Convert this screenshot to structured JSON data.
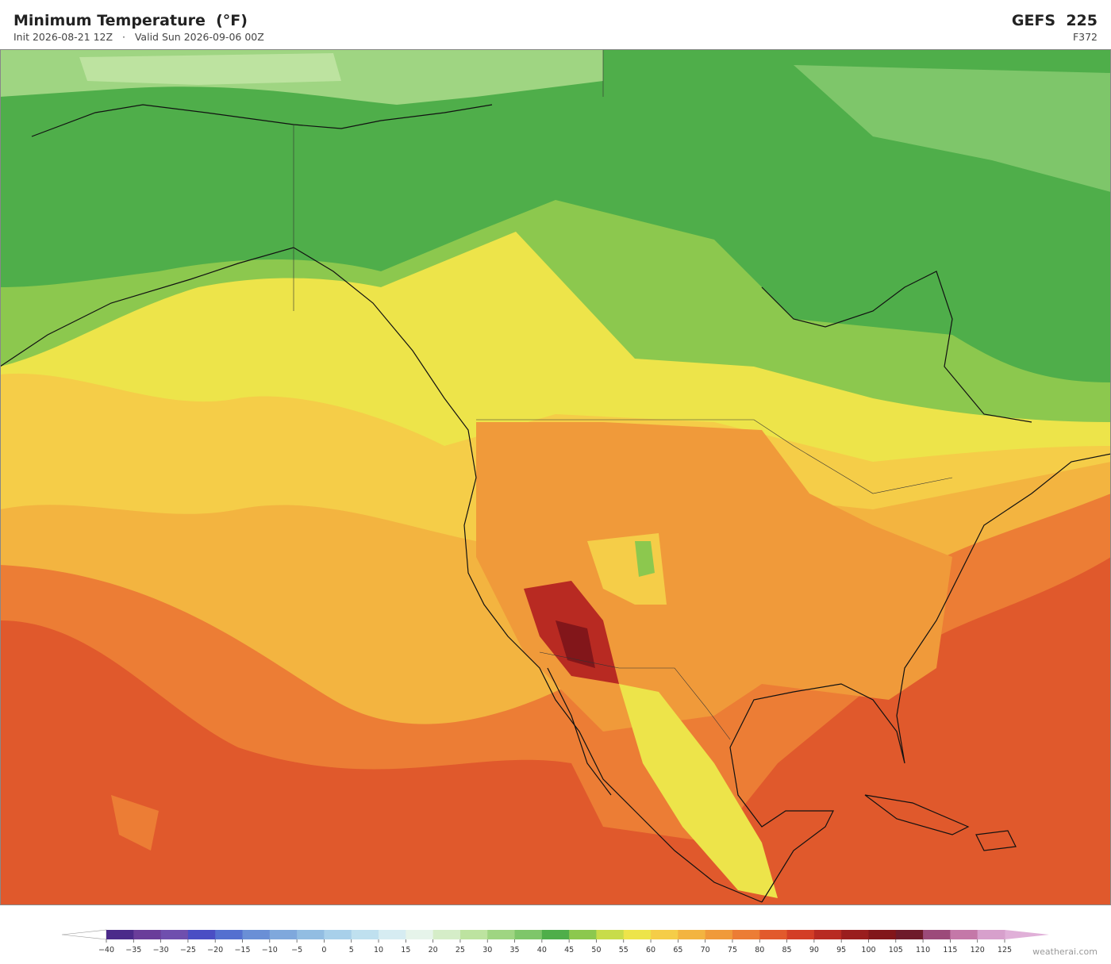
{
  "header": {
    "title": "Minimum Temperature  (°F)",
    "subtitle": "Init 2026-08-21 12Z   ·   Valid Sun 2026-09-06 00Z",
    "model": "GEFS  225",
    "forecast_hour": "F372"
  },
  "colorbar": {
    "ticks": [
      {
        "value": -40,
        "label": "−40"
      },
      {
        "value": -35,
        "label": "−35"
      },
      {
        "value": -30,
        "label": "−30"
      },
      {
        "value": -25,
        "label": "−25"
      },
      {
        "value": -20,
        "label": "−20"
      },
      {
        "value": -15,
        "label": "−15"
      },
      {
        "value": -10,
        "label": "−10"
      },
      {
        "value": -5,
        "label": "−5"
      },
      0,
      5,
      10,
      15,
      20,
      25,
      30,
      35,
      40,
      45,
      50,
      55,
      60,
      65,
      70,
      75,
      80,
      85,
      90,
      95,
      100,
      105,
      110,
      115,
      120,
      125
    ],
    "colors": [
      "#4b2a8a",
      "#6a3d9a",
      "#6f4fae",
      "#4a4ec4",
      "#5470d0",
      "#6a8fd6",
      "#7fa8dc",
      "#92bde2",
      "#a8d0ea",
      "#bfe0ef",
      "#d6ecf2",
      "#e6f4ea",
      "#d5edc8",
      "#bde3a0",
      "#9fd582",
      "#7ec66a",
      "#4fae4a",
      "#8cc84e",
      "#c8dc4a",
      "#ede44a",
      "#f5cd48",
      "#f3b440",
      "#f09a3a",
      "#ec7d35",
      "#e25a2c",
      "#d33e26",
      "#b82a22",
      "#9a1e1e",
      "#82161a",
      "#6e1a2a",
      "#9c4a7a",
      "#c478a8",
      "#d7a0cc"
    ]
  },
  "footer": {
    "credit": "weatherai.com"
  }
}
